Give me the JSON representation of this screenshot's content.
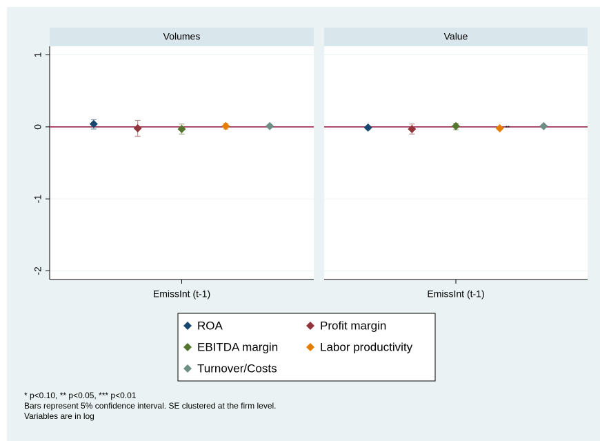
{
  "chart_data": {
    "type": "errorbar",
    "panels": [
      "Volumes",
      "Value"
    ],
    "x_label": "EmissInt (t-1)",
    "ylim": [
      -2.12,
      1.12
    ],
    "yticks": [
      1,
      0,
      -1,
      -2
    ],
    "grid": true,
    "reference_line": {
      "value": 0,
      "color": "#90153c"
    },
    "series": [
      {
        "name": "ROA",
        "color": "#1a476f",
        "values": [
          0.04,
          -0.01
        ],
        "ci_low": [
          -0.03,
          -0.03
        ],
        "ci_high": [
          0.1,
          0.01
        ]
      },
      {
        "name": "Profit margin",
        "color": "#90353b",
        "values": [
          -0.02,
          -0.03
        ],
        "ci_low": [
          -0.13,
          -0.1
        ],
        "ci_high": [
          0.09,
          0.04
        ]
      },
      {
        "name": "EBITDA margin",
        "color": "#55752f",
        "values": [
          -0.03,
          0.01
        ],
        "ci_low": [
          -0.1,
          -0.04
        ],
        "ci_high": [
          0.04,
          0.05
        ]
      },
      {
        "name": "Labor productivity",
        "color": "#e37e00",
        "values": [
          0.01,
          -0.02
        ],
        "ci_low": [
          -0.03,
          -0.04
        ],
        "ci_high": [
          0.05,
          0.0
        ],
        "stars": [
          null,
          "**"
        ]
      },
      {
        "name": "Turnover/Costs",
        "color": "#6e8e84",
        "values": [
          0.01,
          0.01
        ],
        "ci_low": [
          -0.01,
          -0.01
        ],
        "ci_high": [
          0.03,
          0.03
        ]
      }
    ],
    "notes": [
      "* p<0.10, ** p<0.05, *** p<0.01",
      "Bars represent 5% confidence interval.  SE clustered at the firm level.",
      "Variables are in log"
    ]
  }
}
